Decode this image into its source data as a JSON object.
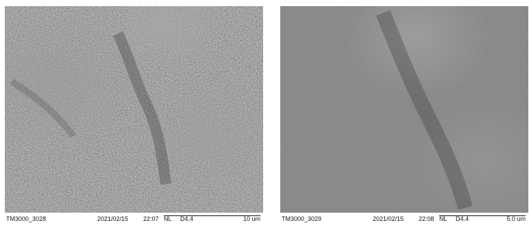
{
  "micrographs": [
    {
      "image_id": "TM3000_3028",
      "date": "2021/02/15",
      "time": "22:07",
      "mode": "NL",
      "working_distance": "D4.4",
      "scale_label": "10 um"
    },
    {
      "image_id": "TM3000_3029",
      "date": "2021/02/15",
      "time": "22:08",
      "mode": "NL",
      "working_distance": "D4.4",
      "scale_label": "5.0 um"
    }
  ]
}
